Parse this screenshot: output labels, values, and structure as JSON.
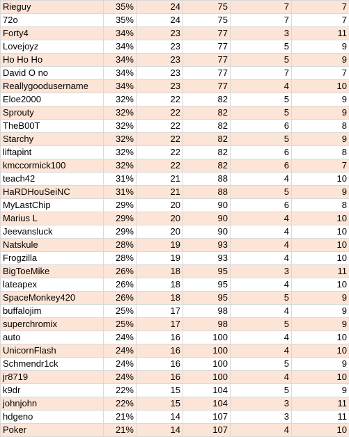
{
  "table": {
    "rows": [
      [
        "Rieguy",
        "35%",
        "24",
        "75",
        "7",
        "7"
      ],
      [
        "72o",
        "35%",
        "24",
        "75",
        "7",
        "7"
      ],
      [
        "Forty4",
        "34%",
        "23",
        "77",
        "3",
        "11"
      ],
      [
        "Lovejoyz",
        "34%",
        "23",
        "77",
        "5",
        "9"
      ],
      [
        "Ho Ho Ho",
        "34%",
        "23",
        "77",
        "5",
        "9"
      ],
      [
        "David O no",
        "34%",
        "23",
        "77",
        "7",
        "7"
      ],
      [
        "Reallygoodusername",
        "34%",
        "23",
        "77",
        "4",
        "10"
      ],
      [
        "Eloe2000",
        "32%",
        "22",
        "82",
        "5",
        "9"
      ],
      [
        "Sprouty",
        "32%",
        "22",
        "82",
        "5",
        "9"
      ],
      [
        "TheB00T",
        "32%",
        "22",
        "82",
        "6",
        "8"
      ],
      [
        "Starchy",
        "32%",
        "22",
        "82",
        "5",
        "9"
      ],
      [
        "liftapint",
        "32%",
        "22",
        "82",
        "6",
        "8"
      ],
      [
        "kmccormick100",
        "32%",
        "22",
        "82",
        "6",
        "7"
      ],
      [
        "teach42",
        "31%",
        "21",
        "88",
        "4",
        "10"
      ],
      [
        "HaRDHouSeiNC",
        "31%",
        "21",
        "88",
        "5",
        "9"
      ],
      [
        "MyLastChip",
        "29%",
        "20",
        "90",
        "6",
        "8"
      ],
      [
        "Marius L",
        "29%",
        "20",
        "90",
        "4",
        "10"
      ],
      [
        "Jeevansluck",
        "29%",
        "20",
        "90",
        "4",
        "10"
      ],
      [
        "Natskule",
        "28%",
        "19",
        "93",
        "4",
        "10"
      ],
      [
        "Frogzilla",
        "28%",
        "19",
        "93",
        "4",
        "10"
      ],
      [
        "BigToeMike",
        "26%",
        "18",
        "95",
        "3",
        "11"
      ],
      [
        "lateapex",
        "26%",
        "18",
        "95",
        "4",
        "10"
      ],
      [
        "SpaceMonkey420",
        "26%",
        "18",
        "95",
        "5",
        "9"
      ],
      [
        "buffalojim",
        "25%",
        "17",
        "98",
        "4",
        "9"
      ],
      [
        "superchromix",
        "25%",
        "17",
        "98",
        "5",
        "9"
      ],
      [
        "auto",
        "24%",
        "16",
        "100",
        "4",
        "10"
      ],
      [
        "UnicornFlash",
        "24%",
        "16",
        "100",
        "4",
        "10"
      ],
      [
        "Schmendr1ck",
        "24%",
        "16",
        "100",
        "5",
        "9"
      ],
      [
        "jr8719",
        "24%",
        "16",
        "100",
        "4",
        "10"
      ],
      [
        "k9dr",
        "22%",
        "15",
        "104",
        "5",
        "9"
      ],
      [
        "johnjohn",
        "22%",
        "15",
        "104",
        "3",
        "11"
      ],
      [
        "hdgeno",
        "21%",
        "14",
        "107",
        "3",
        "11"
      ],
      [
        "Poker",
        "21%",
        "14",
        "107",
        "4",
        "10"
      ]
    ]
  }
}
